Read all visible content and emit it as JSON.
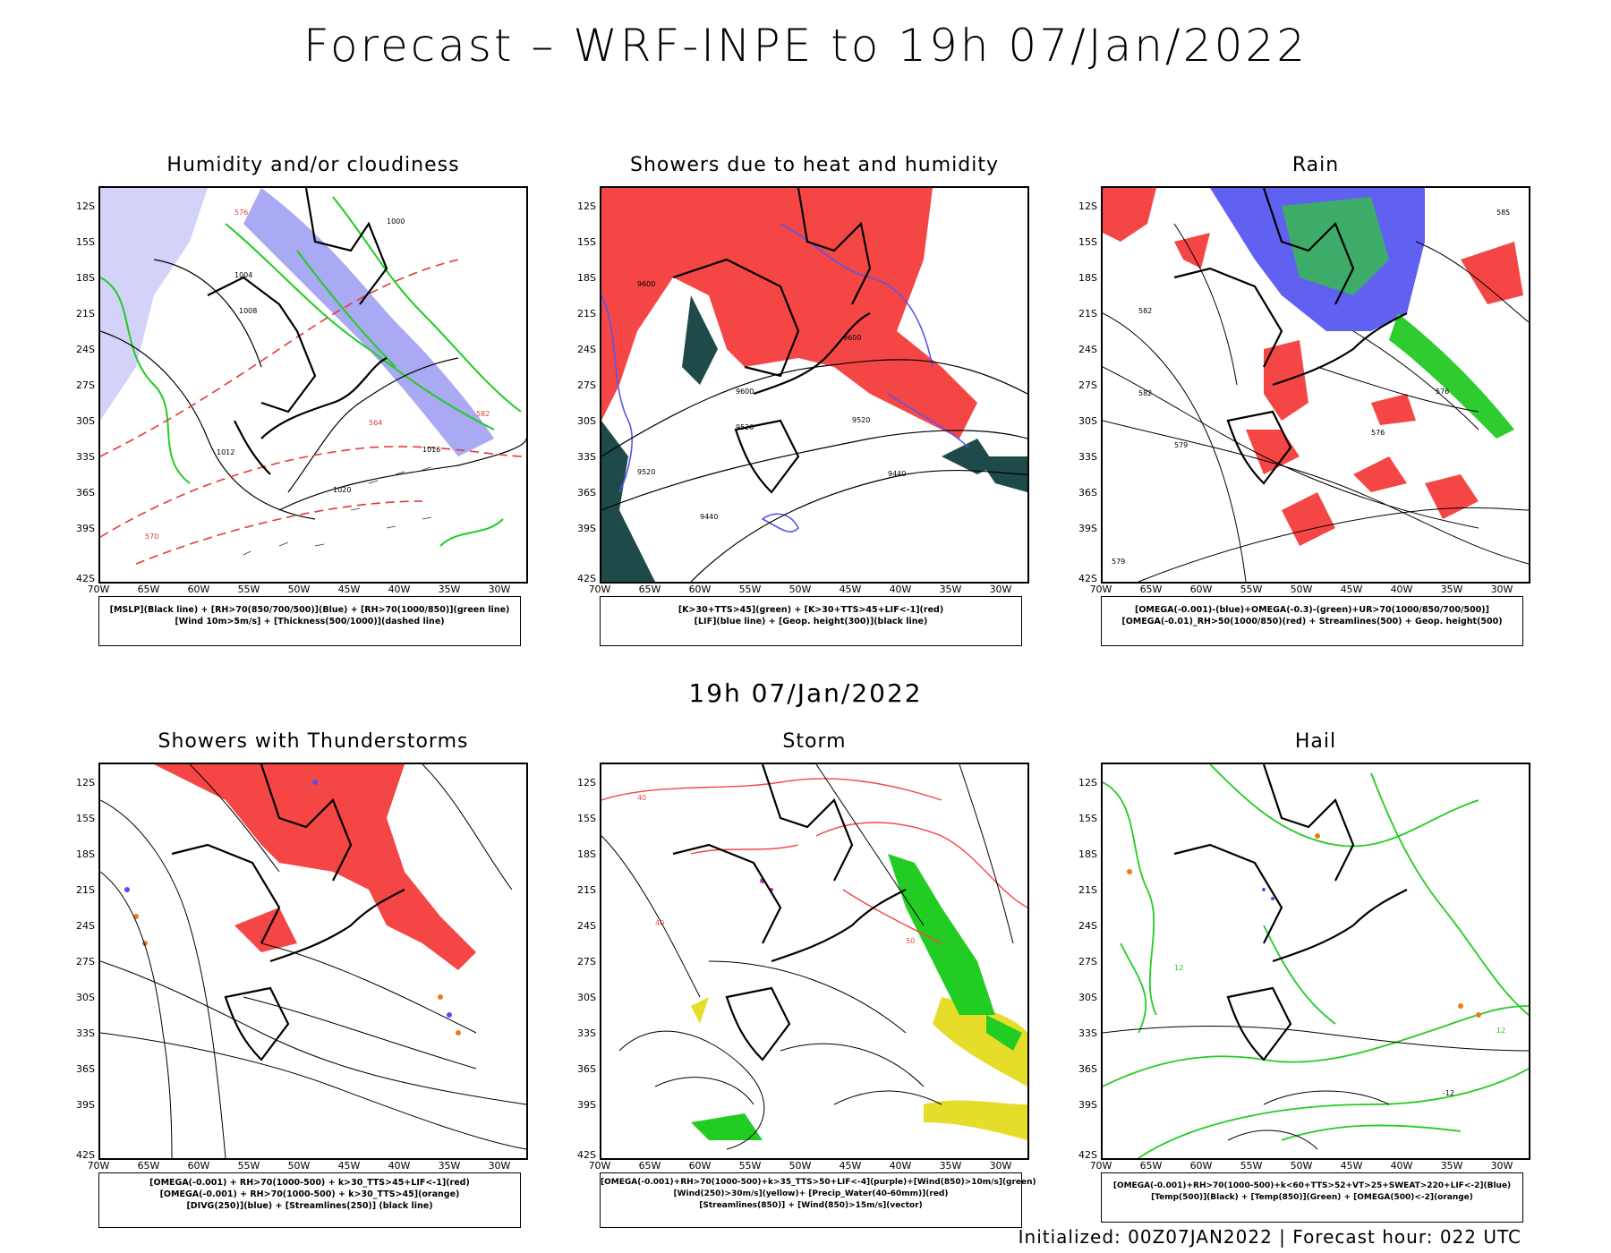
{
  "title": "Forecast – WRF-INPE to 19h 07/Jan/2022",
  "subtitle": "19h 07/Jan/2022",
  "footer": "Initialized: 00Z07JAN2022 | Forecast hour: 022 UTC",
  "lat_ticks": [
    "12S",
    "15S",
    "18S",
    "21S",
    "24S",
    "27S",
    "30S",
    "33S",
    "36S",
    "39S",
    "42S"
  ],
  "lon_ticks": [
    "70W",
    "65W",
    "60W",
    "55W",
    "50W",
    "45W",
    "40W",
    "35W",
    "30W"
  ],
  "panels": [
    {
      "title": "Humidity and/or cloudiness",
      "legend": [
        "[MSLP](Black line) + [RH>70(850/700/500)](Blue) + [RH>70(1000/850)](green line)",
        "[Wind 10m>5m/s] + [Thickness(500/1000)](dashed line)"
      ]
    },
    {
      "title": "Showers due to heat and humidity",
      "legend": [
        "[K>30+TTS>45](green) + [K>30+TTS>45+LIF<-1](red)",
        "[LIF](blue line) + [Geop. height(300)](black line)"
      ]
    },
    {
      "title": "Rain",
      "legend": [
        "[OMEGA(-0.001)-(blue)+OMEGA(-0.3)-(green)+UR>70(1000/850/700/500)]",
        "[OMEGA(-0.01)_RH>50(1000/850)(red) + Streamlines(500) + Geop. height(500)"
      ]
    },
    {
      "title": "Showers with Thunderstorms",
      "legend": [
        "[OMEGA(-0.001) + RH>70(1000-500) + k>30_TTS>45+LIF<-1](red)",
        "[OMEGA(-0.001) + RH>70(1000-500) + k>30_TTS>45](orange)",
        "[DIVG(250)](blue) + [Streamlines(250)] (black line)"
      ]
    },
    {
      "title": "Storm",
      "legend": [
        "[OMEGA(-0.001)+RH>70(1000-500)+k>35_TTS>50+LIF<-4](purple)+[Wind(850)>10m/s](green)",
        "[Wind(250)>30m/s](yellow)+ [Precip_Water(40-60mm)](red)",
        "[Streamlines(850)] + [Wind(850)>15m/s](vector)"
      ]
    },
    {
      "title": "Hail",
      "legend": [
        "[OMEGA(-0.001)+RH>70(1000-500)+k<60+TTS>52+VT>25+SWEAT>220+LIF<-2](Blue)",
        "[Temp(500)](Black) + [Temp(850)](Green) + [OMEGA(500)<-2](orange)"
      ]
    }
  ],
  "contour_labels": {
    "p1": [
      "1008",
      "1004",
      "1012",
      "1016",
      "1020",
      "1000",
      "576",
      "570",
      "564",
      "582"
    ],
    "p2": [
      "9600",
      "9520",
      "9440"
    ],
    "p3": [
      "585",
      "582",
      "579",
      "576"
    ],
    "p5": [
      "40",
      "50"
    ],
    "p6": [
      "12",
      "-12"
    ]
  },
  "colors": {
    "red": "#f54646",
    "blue": "#7070f0",
    "green": "#22cc22",
    "darkteal": "#1f4a4a",
    "yellow": "#e6dc2a",
    "orange": "#f07a1a"
  }
}
